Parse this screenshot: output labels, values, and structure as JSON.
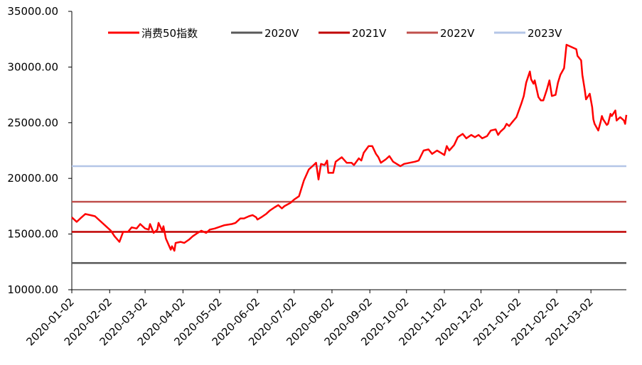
{
  "chart_data": {
    "type": "line",
    "title": "",
    "xlabel": "",
    "ylabel": "",
    "ylim": [
      10000,
      35000
    ],
    "yticks": [
      10000,
      15000,
      20000,
      25000,
      30000,
      35000
    ],
    "ytick_labels": [
      "10000.00",
      "15000.00",
      "20000.00",
      "25000.00",
      "30000.00",
      "35000.00"
    ],
    "xlim": [
      "2020-01-02",
      "2021-03-31"
    ],
    "xticks": [
      "2020-01-02",
      "2020-02-02",
      "2020-03-02",
      "2020-04-02",
      "2020-05-02",
      "2020-06-02",
      "2020-07-02",
      "2020-08-02",
      "2020-09-02",
      "2020-10-02",
      "2020-11-02",
      "2020-12-02",
      "2021-01-02",
      "2021-02-02",
      "2021-03-02"
    ],
    "grid": false,
    "legend_position": "top",
    "series": [
      {
        "name": "消费50指数",
        "color": "#ff0000",
        "points": [
          [
            "2020-01-02",
            16500
          ],
          [
            "2020-01-06",
            16100
          ],
          [
            "2020-01-09",
            16400
          ],
          [
            "2020-01-13",
            16800
          ],
          [
            "2020-01-17",
            16700
          ],
          [
            "2020-01-21",
            16600
          ],
          [
            "2020-02-03",
            15300
          ],
          [
            "2020-02-06",
            14800
          ],
          [
            "2020-02-10",
            14300
          ],
          [
            "2020-02-13",
            15200
          ],
          [
            "2020-02-17",
            15200
          ],
          [
            "2020-02-20",
            15600
          ],
          [
            "2020-02-24",
            15500
          ],
          [
            "2020-02-27",
            15900
          ],
          [
            "2020-03-02",
            15500
          ],
          [
            "2020-03-05",
            15400
          ],
          [
            "2020-03-06",
            15900
          ],
          [
            "2020-03-09",
            15100
          ],
          [
            "2020-03-12",
            15400
          ],
          [
            "2020-03-13",
            16000
          ],
          [
            "2020-03-16",
            15300
          ],
          [
            "2020-03-17",
            15700
          ],
          [
            "2020-03-19",
            14600
          ],
          [
            "2020-03-23",
            13600
          ],
          [
            "2020-03-24",
            13900
          ],
          [
            "2020-03-26",
            13500
          ],
          [
            "2020-03-27",
            14200
          ],
          [
            "2020-03-31",
            14300
          ],
          [
            "2020-04-03",
            14200
          ],
          [
            "2020-04-07",
            14500
          ],
          [
            "2020-04-10",
            14800
          ],
          [
            "2020-04-14",
            15100
          ],
          [
            "2020-04-17",
            15300
          ],
          [
            "2020-04-21",
            15100
          ],
          [
            "2020-04-24",
            15400
          ],
          [
            "2020-04-28",
            15500
          ],
          [
            "2020-05-06",
            15800
          ],
          [
            "2020-05-12",
            15900
          ],
          [
            "2020-05-15",
            16000
          ],
          [
            "2020-05-19",
            16400
          ],
          [
            "2020-05-22",
            16400
          ],
          [
            "2020-05-26",
            16600
          ],
          [
            "2020-05-29",
            16700
          ],
          [
            "2020-06-01",
            16500
          ],
          [
            "2020-06-02",
            16300
          ],
          [
            "2020-06-05",
            16500
          ],
          [
            "2020-06-09",
            16800
          ],
          [
            "2020-06-12",
            17100
          ],
          [
            "2020-06-16",
            17400
          ],
          [
            "2020-06-19",
            17600
          ],
          [
            "2020-06-22",
            17300
          ],
          [
            "2020-06-24",
            17500
          ],
          [
            "2020-06-29",
            17800
          ],
          [
            "2020-07-02",
            18100
          ],
          [
            "2020-07-06",
            18400
          ],
          [
            "2020-07-08",
            19100
          ],
          [
            "2020-07-10",
            19800
          ],
          [
            "2020-07-14",
            20800
          ],
          [
            "2020-07-17",
            21100
          ],
          [
            "2020-07-20",
            21400
          ],
          [
            "2020-07-22",
            19900
          ],
          [
            "2020-07-24",
            21300
          ],
          [
            "2020-07-27",
            21200
          ],
          [
            "2020-07-29",
            21600
          ],
          [
            "2020-07-30",
            20500
          ],
          [
            "2020-08-03",
            20500
          ],
          [
            "2020-08-05",
            21500
          ],
          [
            "2020-08-10",
            21900
          ],
          [
            "2020-08-14",
            21400
          ],
          [
            "2020-08-18",
            21400
          ],
          [
            "2020-08-20",
            21200
          ],
          [
            "2020-08-24",
            21800
          ],
          [
            "2020-08-26",
            21600
          ],
          [
            "2020-08-28",
            22300
          ],
          [
            "2020-09-01",
            22900
          ],
          [
            "2020-09-04",
            22900
          ],
          [
            "2020-09-07",
            22200
          ],
          [
            "2020-09-09",
            21900
          ],
          [
            "2020-09-11",
            21400
          ],
          [
            "2020-09-15",
            21700
          ],
          [
            "2020-09-18",
            22000
          ],
          [
            "2020-09-21",
            21500
          ],
          [
            "2020-09-24",
            21300
          ],
          [
            "2020-09-27",
            21100
          ],
          [
            "2020-09-30",
            21300
          ],
          [
            "2020-10-09",
            21500
          ],
          [
            "2020-10-12",
            21600
          ],
          [
            "2020-10-16",
            22500
          ],
          [
            "2020-10-20",
            22600
          ],
          [
            "2020-10-23",
            22200
          ],
          [
            "2020-10-27",
            22500
          ],
          [
            "2020-10-30",
            22300
          ],
          [
            "2020-11-02",
            22100
          ],
          [
            "2020-11-04",
            22900
          ],
          [
            "2020-11-06",
            22500
          ],
          [
            "2020-11-10",
            23000
          ],
          [
            "2020-11-13",
            23700
          ],
          [
            "2020-11-17",
            24000
          ],
          [
            "2020-11-20",
            23600
          ],
          [
            "2020-11-24",
            23900
          ],
          [
            "2020-11-27",
            23700
          ],
          [
            "2020-11-30",
            23900
          ],
          [
            "2020-12-03",
            23600
          ],
          [
            "2020-12-07",
            23800
          ],
          [
            "2020-12-10",
            24300
          ],
          [
            "2020-12-14",
            24400
          ],
          [
            "2020-12-16",
            23900
          ],
          [
            "2020-12-18",
            24200
          ],
          [
            "2020-12-21",
            24500
          ],
          [
            "2020-12-23",
            24900
          ],
          [
            "2020-12-25",
            24700
          ],
          [
            "2020-12-28",
            25100
          ],
          [
            "2020-12-31",
            25500
          ],
          [
            "2021-01-04",
            26700
          ],
          [
            "2021-01-06",
            27400
          ],
          [
            "2021-01-08",
            28600
          ],
          [
            "2021-01-11",
            29600
          ],
          [
            "2021-01-12",
            28900
          ],
          [
            "2021-01-14",
            28500
          ],
          [
            "2021-01-15",
            28800
          ],
          [
            "2021-01-18",
            27300
          ],
          [
            "2021-01-20",
            27000
          ],
          [
            "2021-01-22",
            27000
          ],
          [
            "2021-01-25",
            28000
          ],
          [
            "2021-01-27",
            28800
          ],
          [
            "2021-01-29",
            27400
          ],
          [
            "2021-02-01",
            27500
          ],
          [
            "2021-02-03",
            28600
          ],
          [
            "2021-02-05",
            29300
          ],
          [
            "2021-02-08",
            29900
          ],
          [
            "2021-02-10",
            32000
          ],
          [
            "2021-02-18",
            31600
          ],
          [
            "2021-02-19",
            31000
          ],
          [
            "2021-02-22",
            30600
          ],
          [
            "2021-02-23",
            29300
          ],
          [
            "2021-02-25",
            27900
          ],
          [
            "2021-02-26",
            27100
          ],
          [
            "2021-03-01",
            27600
          ],
          [
            "2021-03-02",
            27000
          ],
          [
            "2021-03-03",
            26400
          ],
          [
            "2021-03-04",
            25300
          ],
          [
            "2021-03-05",
            24900
          ],
          [
            "2021-03-08",
            24300
          ],
          [
            "2021-03-10",
            25100
          ],
          [
            "2021-03-11",
            25600
          ],
          [
            "2021-03-12",
            25300
          ],
          [
            "2021-03-15",
            24800
          ],
          [
            "2021-03-16",
            24900
          ],
          [
            "2021-03-18",
            25800
          ],
          [
            "2021-03-19",
            25600
          ],
          [
            "2021-03-22",
            26100
          ],
          [
            "2021-03-23",
            25200
          ],
          [
            "2021-03-25",
            25400
          ],
          [
            "2021-03-26",
            25500
          ],
          [
            "2021-03-29",
            25200
          ],
          [
            "2021-03-30",
            24900
          ],
          [
            "2021-03-31",
            25700
          ]
        ]
      },
      {
        "name": "2020V",
        "color": "#595959",
        "value": 12400
      },
      {
        "name": "2021V",
        "color": "#c00000",
        "value": 15200
      },
      {
        "name": "2022V",
        "color": "#c0504d",
        "value": 17900
      },
      {
        "name": "2023V",
        "color": "#b4c6e7",
        "value": 21100
      }
    ]
  }
}
